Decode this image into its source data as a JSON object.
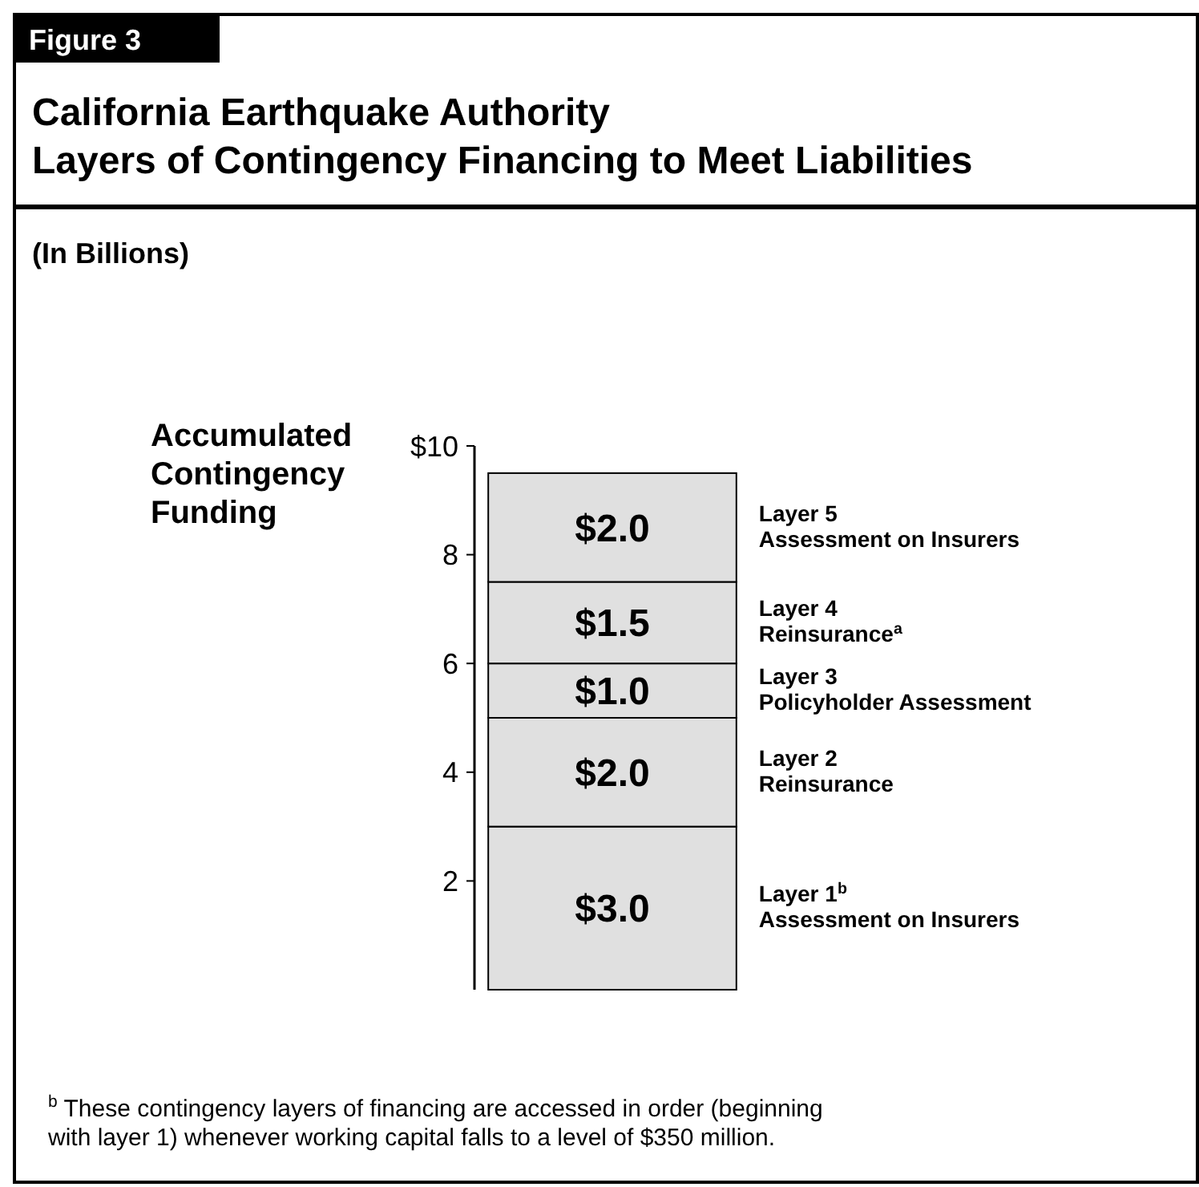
{
  "chart_data": {
    "type": "bar",
    "stacked": true,
    "title": "California Earthquake Authority\nLayers of Contingency Financing to Meet Liabilities",
    "subtitle": "(In Billions)",
    "ylabel": "Accumulated\nContingency\nFunding",
    "categories": [
      null
    ],
    "ylim": [
      0,
      10
    ],
    "yticks": [
      {
        "value": 10,
        "label": "$10"
      },
      8,
      6,
      4,
      2
    ],
    "grid": false,
    "legend": false,
    "series": [
      {
        "name": "Layer 1$^{b}$\nAssessment on Insurers",
        "color": "#e0e0e0",
        "values": [
          3.0
        ],
        "value_labels": [
          "$3.0"
        ]
      },
      {
        "name": "Layer 2\nReinsurance",
        "color": "#e0e0e0",
        "values": [
          2.0
        ],
        "value_labels": [
          "$2.0"
        ]
      },
      {
        "name": "Layer 3\nPolicyholder Assessment",
        "color": "#e0e0e0",
        "values": [
          1.0
        ],
        "value_labels": [
          "$1.0"
        ]
      },
      {
        "name": "Layer 4\nReinsurance$^{a}$",
        "color": "#e0e0e0",
        "values": [
          1.5
        ],
        "value_labels": [
          "$1.5"
        ]
      },
      {
        "name": "Layer 5\nAssessment on Insurers",
        "color": "#e0e0e0",
        "values": [
          2.0
        ],
        "value_labels": [
          "$2.0"
        ]
      }
    ],
    "annotations": [
      "Figure 3",
      "$^{b}$ These contingency layers of financing are accessed in order (beginning\nwith layer 1) whenever working capital falls to a level of $350 million."
    ]
  }
}
